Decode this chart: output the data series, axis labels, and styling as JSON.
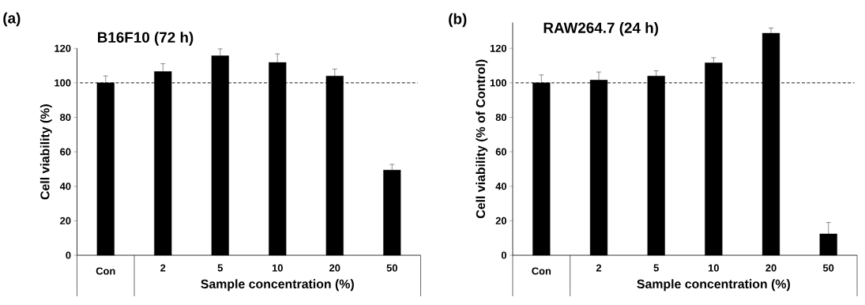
{
  "chart_data": [
    {
      "type": "bar",
      "title": "B16F10 (72 h)",
      "ylabel": "Cell viability (%)",
      "xlabel": "Sample concentration (%)",
      "categories": [
        "Con",
        "2",
        "5",
        "10",
        "20",
        "50"
      ],
      "values": [
        100,
        106.6,
        115.7,
        111.8,
        104,
        49.4
      ],
      "errors": [
        4,
        4.5,
        4,
        5,
        4,
        3.3
      ],
      "color": "#000000",
      "ylim": [
        0,
        120
      ],
      "yticks": [
        0,
        20,
        40,
        60,
        80,
        100,
        120
      ],
      "ref_lines": [
        {
          "axis": "y",
          "value": 100,
          "line_style": "dashed",
          "color": "#000000"
        }
      ],
      "annotations": [
        "(a)"
      ]
    },
    {
      "type": "bar",
      "title": "RAW264.7 (24 h)",
      "ylabel": "Cell viability (% of Control)",
      "xlabel": "Sample concentration (%)",
      "categories": [
        "Con",
        "2",
        "5",
        "10",
        "20",
        "50"
      ],
      "values": [
        100,
        101.6,
        104,
        111.6,
        128.8,
        12.4
      ],
      "errors": [
        4.6,
        4.7,
        3,
        3,
        3,
        6.6
      ],
      "color": "#000000",
      "ylim": [
        0,
        135
      ],
      "yticks": [
        0,
        20,
        40,
        60,
        80,
        100,
        120
      ],
      "ref_lines": [
        {
          "axis": "y",
          "value": 100,
          "line_style": "dashed",
          "color": "#000000"
        }
      ],
      "annotations": [
        "(b)"
      ]
    }
  ]
}
